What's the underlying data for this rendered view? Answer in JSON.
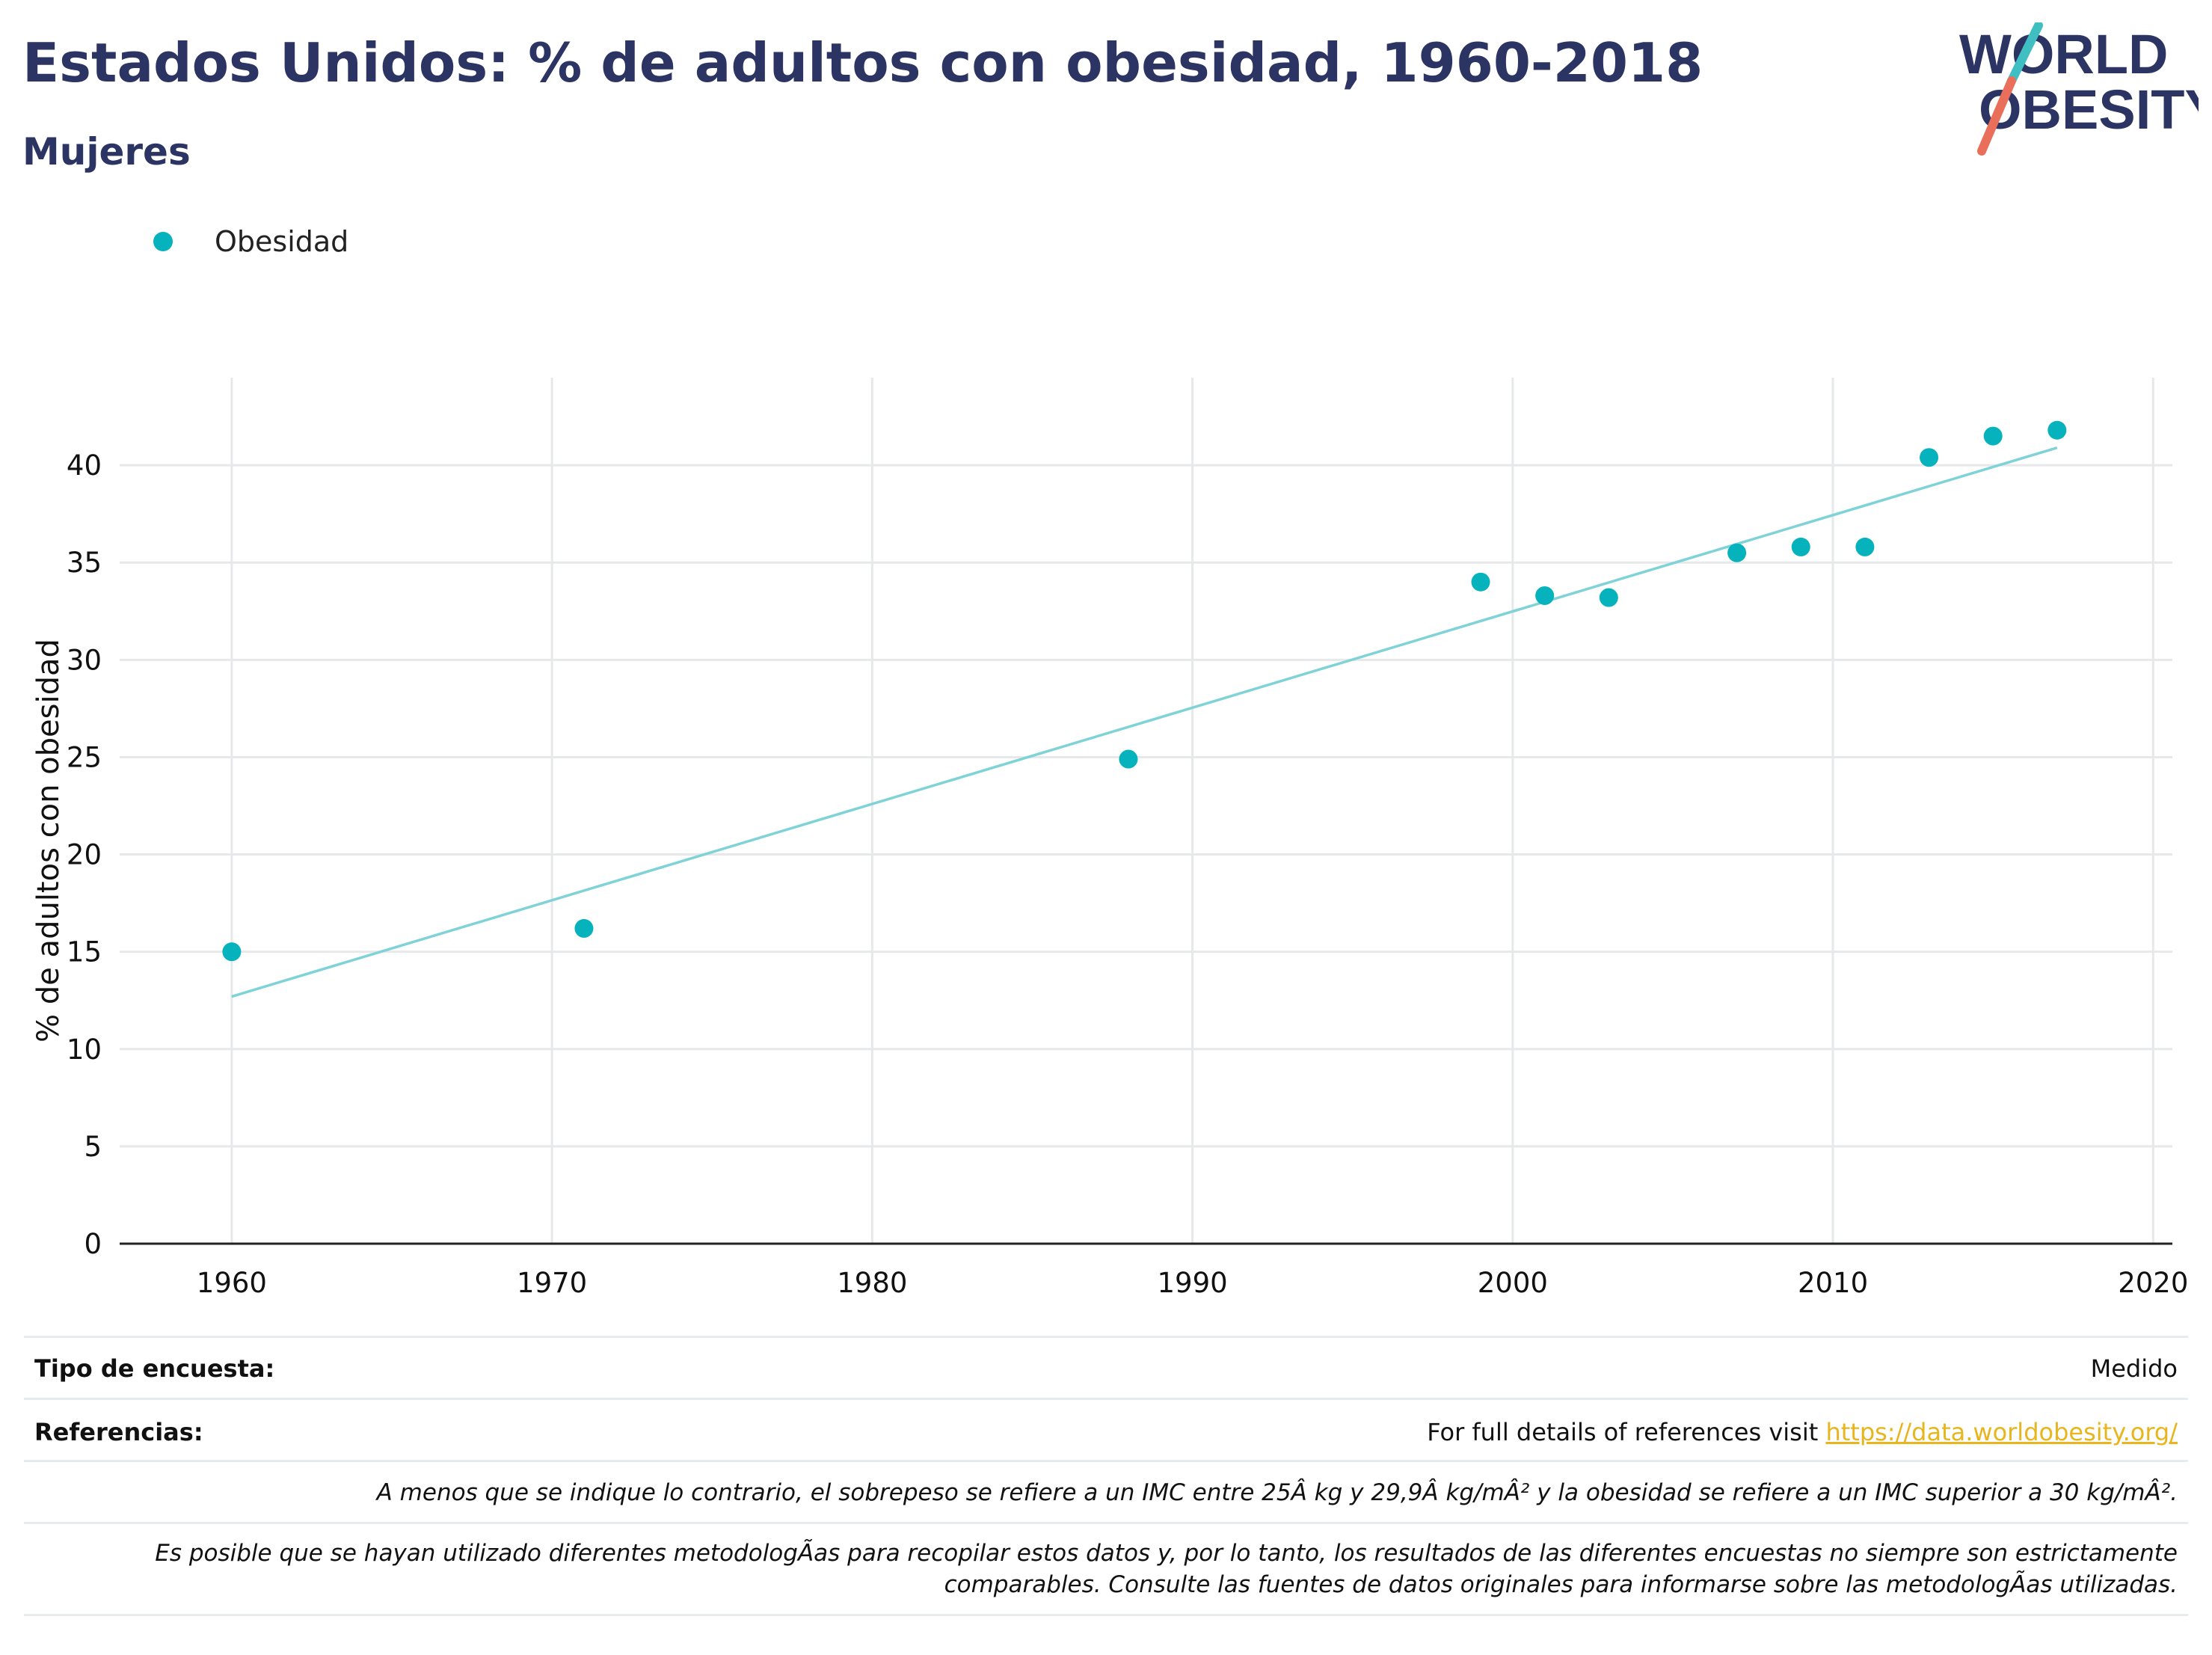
{
  "title": "Estados Unidos: % de adultos con obesidad, 1960-2018",
  "subtitle": "Mujeres",
  "logo": {
    "line1": "WORLD",
    "line2": "OBESITY"
  },
  "colors": {
    "title": "#2b3462",
    "dots": "#06b2bb",
    "trend": "#7fd3d8",
    "link": "#e8b51d",
    "slash_teal": "#3fbfc1",
    "slash_coral": "#e96f5a"
  },
  "chart_data": {
    "type": "scatter",
    "title": "Estados Unidos: % de adultos con obesidad, 1960-2018",
    "subtitle": "Mujeres",
    "xlabel": "",
    "ylabel": "% de adultos con obesidad",
    "xlim": [
      1956.5,
      2020.6
    ],
    "ylim": [
      0,
      44.5
    ],
    "x_ticks": [
      1960,
      1970,
      1980,
      1990,
      2000,
      2010,
      2020
    ],
    "y_ticks": [
      0,
      5,
      10,
      15,
      20,
      25,
      30,
      35,
      40
    ],
    "grid": true,
    "legend": "top-left",
    "series": [
      {
        "name": "Obesidad",
        "x": [
          1960,
          1971,
          1988,
          1999,
          2001,
          2003,
          2007,
          2009,
          2011,
          2013,
          2015,
          2017
        ],
        "y": [
          15.0,
          16.2,
          24.9,
          34.0,
          33.3,
          33.2,
          35.5,
          35.8,
          35.8,
          40.4,
          41.5,
          41.8
        ]
      }
    ],
    "trendline": {
      "x": [
        1960,
        2017
      ],
      "y": [
        12.7,
        40.9
      ]
    }
  },
  "footer": {
    "survey_label": "Tipo de encuesta:",
    "survey_value": "Medido",
    "refs_label": "Referencias:",
    "refs_text": "For full details of references visit ",
    "refs_link": "https://data.worldobesity.org/",
    "note1": "A menos que se indique lo contrario, el sobrepeso se refiere a un IMC entre 25Â kg y 29,9Â kg/mÂ² y la obesidad se refiere a un IMC superior a 30 kg/mÂ².",
    "note2_line1": "Es posible que se hayan utilizado diferentes metodologÃas para recopilar estos datos y, por lo tanto, los resultados de las diferentes encuestas no siempre son estrictamente",
    "note2_line2": "comparables. Consulte las fuentes de datos originales para informarse sobre las metodologÃas utilizadas."
  }
}
